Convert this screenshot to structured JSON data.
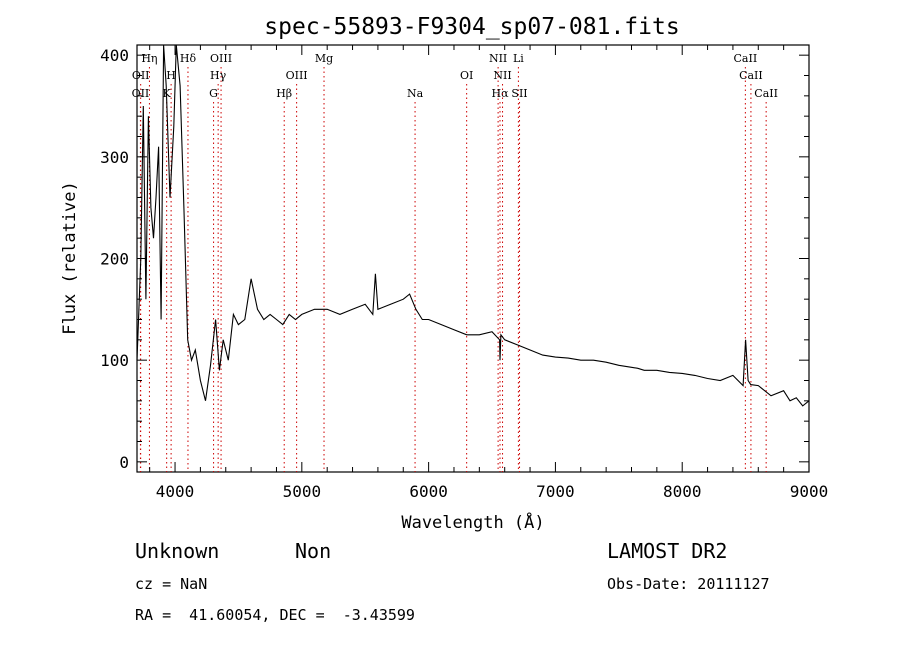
{
  "chart_data": {
    "type": "line",
    "title": "spec-55893-F9304_sp07-081.fits",
    "xlabel": "Wavelength (Å)",
    "ylabel": "Flux (relative)",
    "xlim": [
      3700,
      9000
    ],
    "ylim": [
      -10,
      410
    ],
    "xticks": [
      4000,
      5000,
      6000,
      7000,
      8000,
      9000
    ],
    "yticks": [
      0,
      100,
      200,
      300,
      400
    ],
    "grid": false,
    "line_color": "#000000",
    "marker_color": "#cc0000",
    "series": [
      {
        "x": [
          3700,
          3730,
          3750,
          3770,
          3790,
          3810,
          3830,
          3850,
          3870,
          3890,
          3910,
          3930,
          3960,
          3990,
          4010,
          4040,
          4070,
          4100,
          4130,
          4160,
          4200,
          4240,
          4280,
          4320,
          4350,
          4380,
          4420,
          4460,
          4500,
          4550,
          4600,
          4650,
          4700,
          4750,
          4800,
          4850,
          4900,
          4950,
          5000,
          5100,
          5200,
          5300,
          5400,
          5500,
          5560,
          5580,
          5600,
          5700,
          5800,
          5850,
          5900,
          5950,
          6000,
          6100,
          6200,
          6300,
          6400,
          6500,
          6560,
          6563,
          6570,
          6600,
          6700,
          6800,
          6900,
          7000,
          7100,
          7200,
          7300,
          7400,
          7500,
          7600,
          7650,
          7700,
          7800,
          7900,
          8000,
          8100,
          8200,
          8300,
          8400,
          8480,
          8500,
          8520,
          8540,
          8600,
          8700,
          8800,
          8850,
          8900,
          8950,
          9000
        ],
        "y": [
          100,
          200,
          350,
          160,
          340,
          250,
          220,
          260,
          310,
          140,
          420,
          370,
          260,
          330,
          410,
          370,
          250,
          120,
          100,
          110,
          80,
          60,
          95,
          140,
          90,
          120,
          100,
          145,
          135,
          140,
          180,
          150,
          140,
          145,
          140,
          135,
          145,
          140,
          145,
          150,
          150,
          145,
          150,
          155,
          145,
          185,
          150,
          155,
          160,
          165,
          150,
          140,
          140,
          135,
          130,
          125,
          125,
          128,
          120,
          100,
          125,
          120,
          115,
          110,
          105,
          103,
          102,
          100,
          100,
          98,
          95,
          93,
          92,
          90,
          90,
          88,
          87,
          85,
          82,
          80,
          85,
          75,
          120,
          80,
          76,
          75,
          65,
          70,
          60,
          63,
          55,
          60
        ]
      }
    ],
    "line_markers": [
      {
        "x": 3727,
        "label": "OII",
        "row": 3
      },
      {
        "x": 3729,
        "label": "OII",
        "row": 2
      },
      {
        "x": 3798,
        "label": "Hη",
        "row": 1
      },
      {
        "x": 3934,
        "label": "K",
        "row": 3
      },
      {
        "x": 3969,
        "label": "H",
        "row": 2
      },
      {
        "x": 4102,
        "label": "Hδ",
        "row": 1
      },
      {
        "x": 4304,
        "label": "G",
        "row": 3
      },
      {
        "x": 4340,
        "label": "Hγ",
        "row": 2
      },
      {
        "x": 4363,
        "label": "OIII",
        "row": 1
      },
      {
        "x": 4861,
        "label": "Hβ",
        "row": 3
      },
      {
        "x": 4959,
        "label": "OIII",
        "row": 2
      },
      {
        "x": 5175,
        "label": "Mg",
        "row": 1
      },
      {
        "x": 5893,
        "label": "Na",
        "row": 3
      },
      {
        "x": 6300,
        "label": "OI",
        "row": 2
      },
      {
        "x": 6548,
        "label": "NII",
        "row": 1
      },
      {
        "x": 6563,
        "label": "Hα",
        "row": 3
      },
      {
        "x": 6583,
        "label": "NII",
        "row": 2
      },
      {
        "x": 6708,
        "label": "Li",
        "row": 1
      },
      {
        "x": 6717,
        "label": "SII",
        "row": 3
      },
      {
        "x": 8498,
        "label": "CaII",
        "row": 1
      },
      {
        "x": 8542,
        "label": "CaII",
        "row": 2
      },
      {
        "x": 8662,
        "label": "CaII",
        "row": 3
      }
    ]
  },
  "info": {
    "class_text": "Unknown",
    "subclass_text": "Non",
    "survey_text": "LAMOST DR2",
    "cz_text": "cz = NaN",
    "obs_date_text": "Obs-Date: 20111127",
    "coords_text": "RA =  41.60054, DEC =  -3.43599"
  }
}
